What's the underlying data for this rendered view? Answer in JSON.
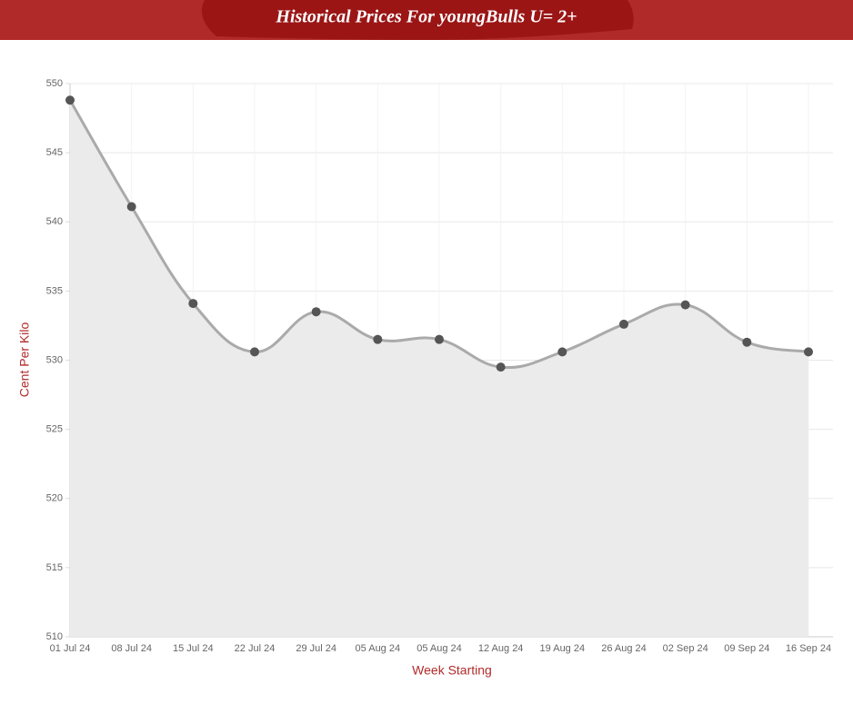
{
  "chart_data": {
    "type": "line",
    "title": "Historical Prices For youngBulls U= 2+",
    "x_label": "Week Starting",
    "y_label": "Cent Per Kilo",
    "categories": [
      "01 Jul 24",
      "08 Jul 24",
      "15 Jul 24",
      "22 Jul 24",
      "29 Jul 24",
      "05 Aug 24",
      "05 Aug 24",
      "12 Aug 24",
      "19 Aug 24",
      "26 Aug 24",
      "02 Sep 24",
      "09 Sep 24",
      "16 Sep 24"
    ],
    "series": [
      {
        "name": "Cent Per Kilo",
        "color": "#aaaaaa",
        "values": [
          548.8,
          541.1,
          534.1,
          530.6,
          533.5,
          531.5,
          531.5,
          529.5,
          530.6,
          532.6,
          534.0,
          531.3,
          530.6
        ]
      }
    ],
    "ylim": [
      510,
      550
    ],
    "yticks": [
      510,
      515,
      520,
      525,
      530,
      535,
      540,
      545,
      550
    ],
    "grid": true,
    "fill": true
  }
}
